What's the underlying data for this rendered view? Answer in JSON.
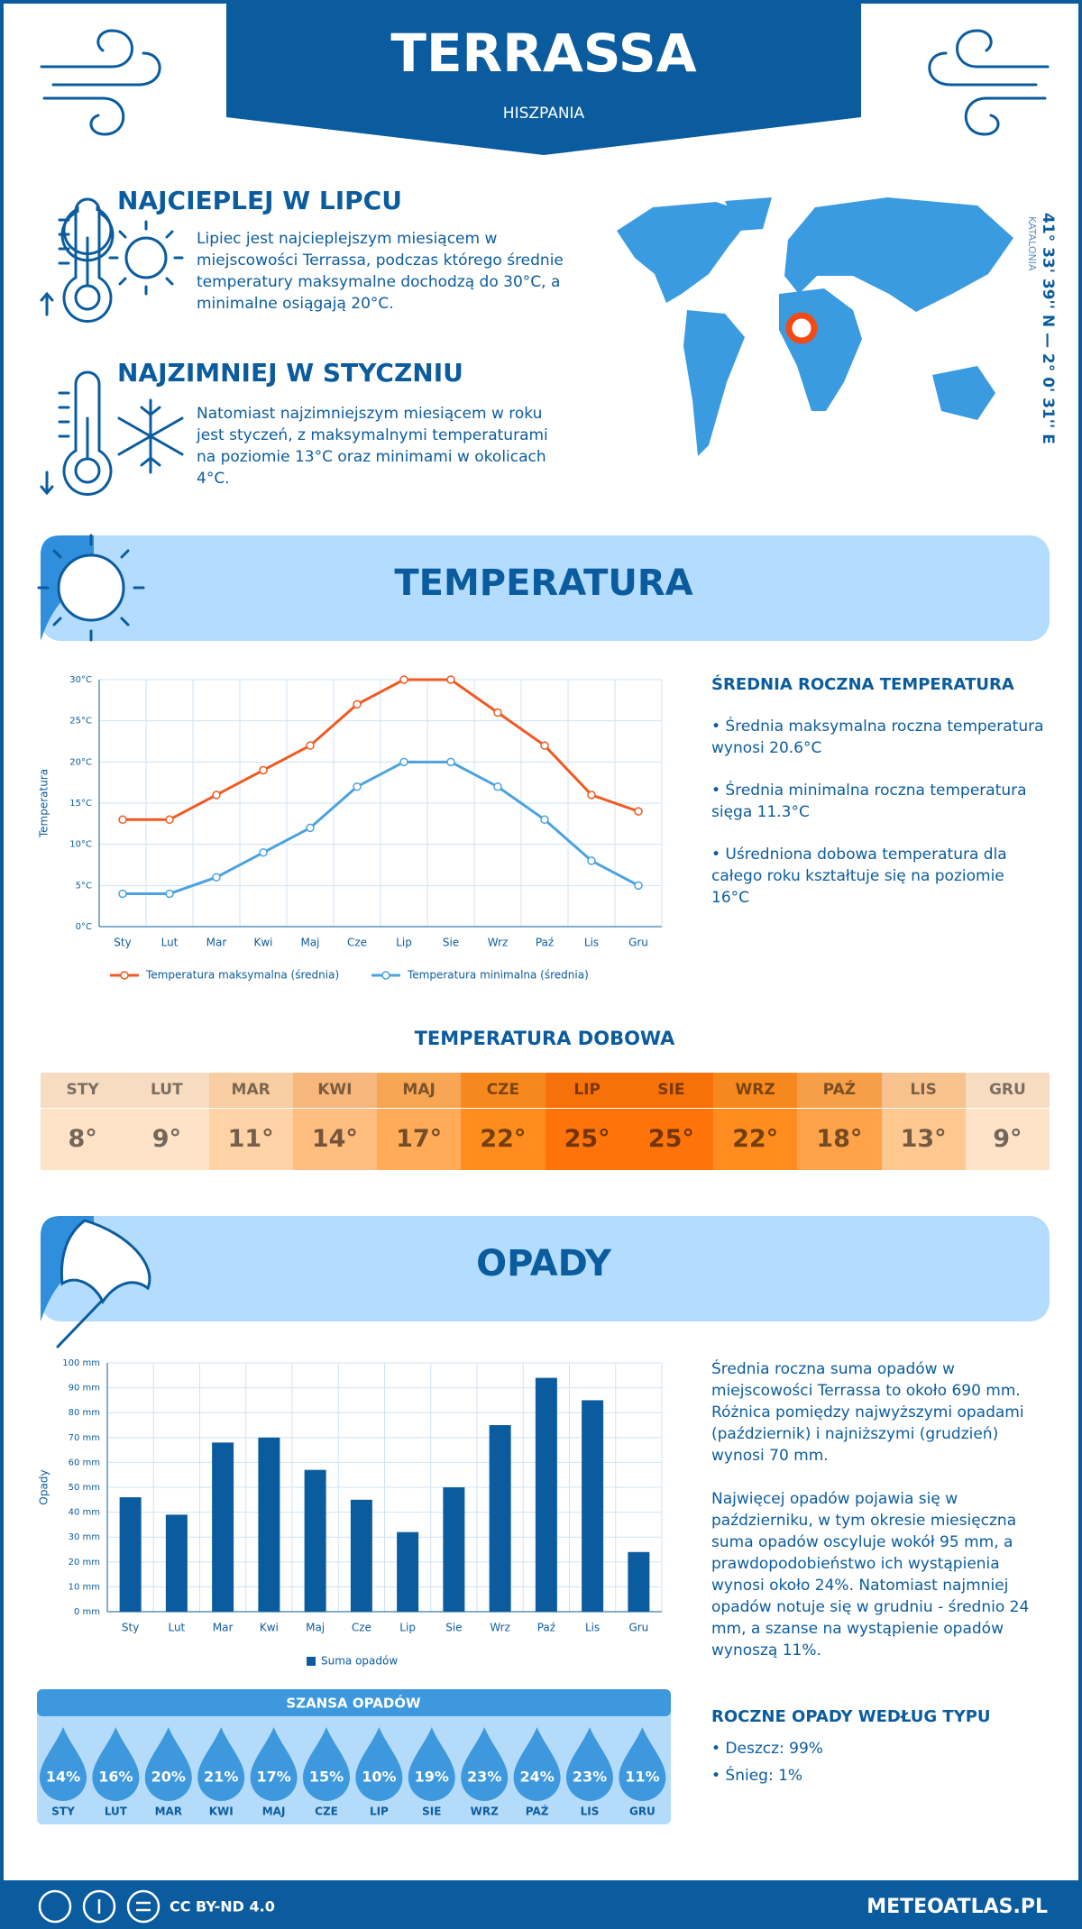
{
  "header": {
    "title": "TERRASSA",
    "subtitle": "HISZPANIA"
  },
  "hottest": {
    "heading": "NAJCIEPLEJ W LIPCU",
    "text": "Lipiec jest najcieplejszym miesiącem w miejscowości Terrassa, podczas którego średnie temperatury maksymalne dochodzą do 30°C, a minimalne osiągają 20°C."
  },
  "coldest": {
    "heading": "NAJZIMNIEJ W STYCZNIU",
    "text": "Natomiast najzimniejszym miesiącem w roku jest styczeń, z maksymalnymi temperaturami na poziomie 13°C oraz minimami w okolicach 4°C."
  },
  "location": {
    "coordinates": "41° 33' 39'' N — 2° 0' 31'' E",
    "region": "KATALONIA"
  },
  "temperature_section": {
    "title": "TEMPERATURA",
    "summary_title": "ŚREDNIA ROCZNA TEMPERATURA",
    "bullets": [
      "• Średnia maksymalna roczna temperatura wynosi 20.6°C",
      "• Średnia minimalna roczna temperatura sięga 11.3°C",
      "• Uśredniona dobowa temperatura dla całego roku kształtuje się na poziomie 16°C"
    ]
  },
  "chart_data": [
    {
      "type": "line",
      "y_label": "Temperatura",
      "categories": [
        "Sty",
        "Lut",
        "Mar",
        "Kwi",
        "Maj",
        "Cze",
        "Lip",
        "Sie",
        "Wrz",
        "Paź",
        "Lis",
        "Gru"
      ],
      "series": [
        {
          "name": "Temperatura maksymalna (średnia)",
          "color": "#f05a22",
          "values": [
            13,
            13,
            16,
            19,
            22,
            27,
            30,
            30,
            26,
            22,
            16,
            14
          ]
        },
        {
          "name": "Temperatura minimalna (średnia)",
          "color": "#4aa3df",
          "values": [
            4,
            4,
            6,
            9,
            12,
            17,
            20,
            20,
            17,
            13,
            8,
            5
          ]
        }
      ],
      "ylim": [
        0,
        30
      ],
      "yticks": [
        {
          "value": 0,
          "label": "0°C"
        },
        {
          "value": 5,
          "label": "5°C"
        },
        {
          "value": 10,
          "label": "10°C"
        },
        {
          "value": 15,
          "label": "15°C"
        },
        {
          "value": 20,
          "label": "20°C"
        },
        {
          "value": 25,
          "label": "25°C"
        },
        {
          "value": 30,
          "label": "30°C"
        }
      ],
      "grid": true,
      "legend": "bottom"
    },
    {
      "type": "bar",
      "y_label": "Opady",
      "categories": [
        "Sty",
        "Lut",
        "Mar",
        "Kwi",
        "Maj",
        "Cze",
        "Lip",
        "Sie",
        "Wrz",
        "Paź",
        "Lis",
        "Gru"
      ],
      "series": [
        {
          "name": "Suma opadów",
          "color": "#0b5c9e",
          "values": [
            46,
            39,
            68,
            70,
            57,
            45,
            32,
            50,
            75,
            94,
            85,
            24
          ]
        }
      ],
      "ylim": [
        0,
        100
      ],
      "yticks": [
        {
          "value": 0,
          "label": "0 mm"
        },
        {
          "value": 10,
          "label": "10 mm"
        },
        {
          "value": 20,
          "label": "20 mm"
        },
        {
          "value": 30,
          "label": "30 mm"
        },
        {
          "value": 40,
          "label": "40 mm"
        },
        {
          "value": 50,
          "label": "50 mm"
        },
        {
          "value": 60,
          "label": "60 mm"
        },
        {
          "value": 70,
          "label": "70 mm"
        },
        {
          "value": 80,
          "label": "80 mm"
        },
        {
          "value": 90,
          "label": "90 mm"
        },
        {
          "value": 100,
          "label": "100 mm"
        }
      ],
      "grid": true,
      "legend": "bottom"
    }
  ],
  "daily_temperature": {
    "title": "TEMPERATURA DOBOWA",
    "months": [
      "STY",
      "LUT",
      "MAR",
      "KWI",
      "MAJ",
      "CZE",
      "LIP",
      "SIE",
      "WRZ",
      "PAŹ",
      "LIS",
      "GRU"
    ],
    "values": [
      "8°",
      "9°",
      "11°",
      "14°",
      "17°",
      "22°",
      "25°",
      "25°",
      "22°",
      "18°",
      "13°",
      "9°"
    ],
    "colors": [
      "#ffe3c8",
      "#ffe3c8",
      "#ffd3a6",
      "#ffbd80",
      "#ffab57",
      "#ff8c1f",
      "#ff740a",
      "#ff740a",
      "#ff8c1f",
      "#ffa34a",
      "#ffc891",
      "#ffe3c8"
    ]
  },
  "precipitation_section": {
    "title": "OPADY",
    "paragraphs": [
      "Średnia roczna suma opadów w miejscowości Terrassa to około 690 mm. Różnica pomiędzy najwyższymi opadami (październik) i najniższymi (grudzień) wynosi 70 mm.",
      "Najwięcej opadów pojawia się w październiku, w tym okresie miesięczna suma opadów oscyluje wokół 95 mm, a prawdopodobieństwo ich wystąpienia wynosi około 24%. Natomiast najmniej opadów notuje się w grudniu - średnio 24 mm, a szanse na wystąpienie opadów wynoszą 11%."
    ],
    "type_title": "ROCZNE OPADY WEDŁUG TYPU",
    "types": [
      "• Deszcz: 99%",
      "• Śnieg: 1%"
    ]
  },
  "precipitation_chance": {
    "title": "SZANSA OPADÓW",
    "months": [
      "STY",
      "LUT",
      "MAR",
      "KWI",
      "MAJ",
      "CZE",
      "LIP",
      "SIE",
      "WRZ",
      "PAŹ",
      "LIS",
      "GRU"
    ],
    "values": [
      "14%",
      "16%",
      "20%",
      "21%",
      "17%",
      "15%",
      "10%",
      "19%",
      "23%",
      "24%",
      "23%",
      "11%"
    ]
  },
  "footer": {
    "license": "CC BY-ND 4.0",
    "site": "METEOATLAS.PL"
  }
}
